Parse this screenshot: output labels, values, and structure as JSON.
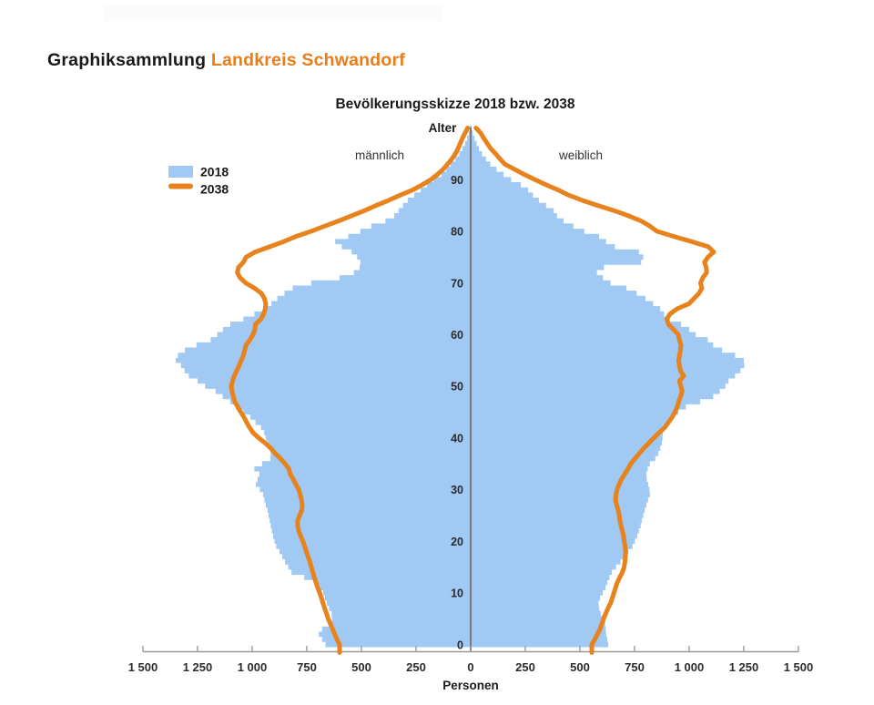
{
  "header": {
    "title_main": "Graphiksammlung",
    "title_accent": "Landkreis Schwandorf"
  },
  "colors": {
    "bar_2018": "#A0C9F4",
    "line_2038": "#E8821C",
    "accent_orange": "#E87D1A",
    "axis": "#999999",
    "center_line": "#7A7A7A",
    "text": "#1A1A1A"
  },
  "chart_data": {
    "type": "population-pyramid",
    "title": "Bevölkerungsskizze 2018 bzw. 2038",
    "age_axis_label": "Alter",
    "left_label": "männlich",
    "right_label": "weiblich",
    "x_axis_label": "Personen",
    "legend": [
      {
        "label": "2018",
        "style": "bar"
      },
      {
        "label": "2038",
        "style": "line"
      }
    ],
    "age_min": 0,
    "age_max": 100,
    "age_ticks": [
      0,
      10,
      20,
      30,
      40,
      50,
      60,
      70,
      80,
      90
    ],
    "x_axis_range_persons": 1500,
    "x_ticks": [
      {
        "label": "1 500",
        "value": -1500
      },
      {
        "label": "1 250",
        "value": -1250
      },
      {
        "label": "1 000",
        "value": -1000
      },
      {
        "label": "750",
        "value": -750
      },
      {
        "label": "500",
        "value": -500
      },
      {
        "label": "250",
        "value": -250
      },
      {
        "label": "0",
        "value": 0
      },
      {
        "label": "250",
        "value": 250
      },
      {
        "label": "500",
        "value": 500
      },
      {
        "label": "750",
        "value": 750
      },
      {
        "label": "1 000",
        "value": 1000
      },
      {
        "label": "1 250",
        "value": 1250
      },
      {
        "label": "1 500",
        "value": 1500
      }
    ],
    "series": {
      "male_2018": [
        665,
        680,
        695,
        680,
        648,
        635,
        636,
        648,
        658,
        667,
        675,
        690,
        715,
        762,
        820,
        835,
        850,
        862,
        875,
        890,
        898,
        904,
        910,
        915,
        920,
        925,
        930,
        938,
        944,
        950,
        965,
        983,
        975,
        967,
        990,
        955,
        917,
        915,
        920,
        928,
        938,
        945,
        960,
        985,
        1008,
        1040,
        1075,
        1100,
        1135,
        1167,
        1215,
        1250,
        1290,
        1310,
        1325,
        1350,
        1340,
        1308,
        1255,
        1190,
        1160,
        1133,
        1100,
        1040,
        990,
        945,
        912,
        885,
        852,
        815,
        730,
        600,
        535,
        508,
        505,
        520,
        545,
        590,
        620,
        560,
        505,
        455,
        390,
        350,
        330,
        310,
        288,
        258,
        229,
        200,
        170,
        133,
        112,
        92,
        70,
        52,
        38,
        26,
        16,
        9,
        4
      ],
      "female_2018": [
        630,
        625,
        620,
        618,
        615,
        605,
        595,
        588,
        585,
        592,
        605,
        617,
        625,
        635,
        646,
        665,
        685,
        705,
        722,
        740,
        752,
        762,
        770,
        778,
        783,
        790,
        797,
        804,
        812,
        820,
        818,
        812,
        806,
        804,
        810,
        820,
        845,
        858,
        868,
        875,
        878,
        879,
        880,
        900,
        925,
        950,
        985,
        1050,
        1110,
        1140,
        1165,
        1180,
        1210,
        1235,
        1252,
        1250,
        1210,
        1150,
        1110,
        1085,
        1030,
        1000,
        963,
        900,
        885,
        867,
        835,
        800,
        760,
        713,
        640,
        605,
        578,
        610,
        780,
        790,
        770,
        660,
        620,
        588,
        520,
        470,
        425,
        395,
        380,
        345,
        312,
        285,
        263,
        230,
        185,
        150,
        118,
        90,
        70,
        52,
        38,
        27,
        17,
        9,
        4
      ],
      "male_2038": [
        600,
        612,
        622,
        632,
        642,
        652,
        660,
        668,
        676,
        683,
        691,
        700,
        708,
        716,
        722,
        729,
        736,
        744,
        752,
        760,
        768,
        778,
        787,
        792,
        792,
        783,
        773,
        771,
        774,
        780,
        787,
        800,
        812,
        826,
        832,
        850,
        870,
        895,
        915,
        940,
        970,
        996,
        1012,
        1025,
        1038,
        1052,
        1066,
        1079,
        1086,
        1092,
        1096,
        1090,
        1082,
        1071,
        1060,
        1050,
        1040,
        1034,
        1028,
        1010,
        996,
        988,
        985,
        960,
        948,
        940,
        938,
        944,
        958,
        990,
        1030,
        1055,
        1068,
        1063,
        1040,
        1028,
        986,
        920,
        855,
        800,
        730,
        668,
        605,
        545,
        486,
        432,
        375,
        322,
        265,
        222,
        182,
        152,
        126,
        106,
        86,
        70,
        58,
        48,
        38,
        26,
        14
      ],
      "female_2038": [
        554,
        568,
        580,
        592,
        600,
        608,
        618,
        628,
        640,
        648,
        656,
        663,
        671,
        682,
        694,
        702,
        706,
        708,
        709,
        707,
        702,
        700,
        694,
        688,
        683,
        680,
        675,
        668,
        663,
        665,
        670,
        679,
        690,
        705,
        720,
        733,
        752,
        772,
        792,
        815,
        838,
        862,
        888,
        905,
        922,
        935,
        945,
        952,
        960,
        968,
        962,
        955,
        975,
        960,
        955,
        952,
        956,
        960,
        962,
        955,
        950,
        928,
        905,
        898,
        912,
        945,
        1000,
        1022,
        1045,
        1058,
        1052,
        1062,
        1080,
        1078,
        1070,
        1086,
        1112,
        1088,
        1010,
        930,
        852,
        820,
        780,
        722,
        656,
        580,
        510,
        448,
        400,
        345,
        294,
        245,
        200,
        156,
        134,
        114,
        92,
        76,
        60,
        46,
        24
      ]
    }
  }
}
